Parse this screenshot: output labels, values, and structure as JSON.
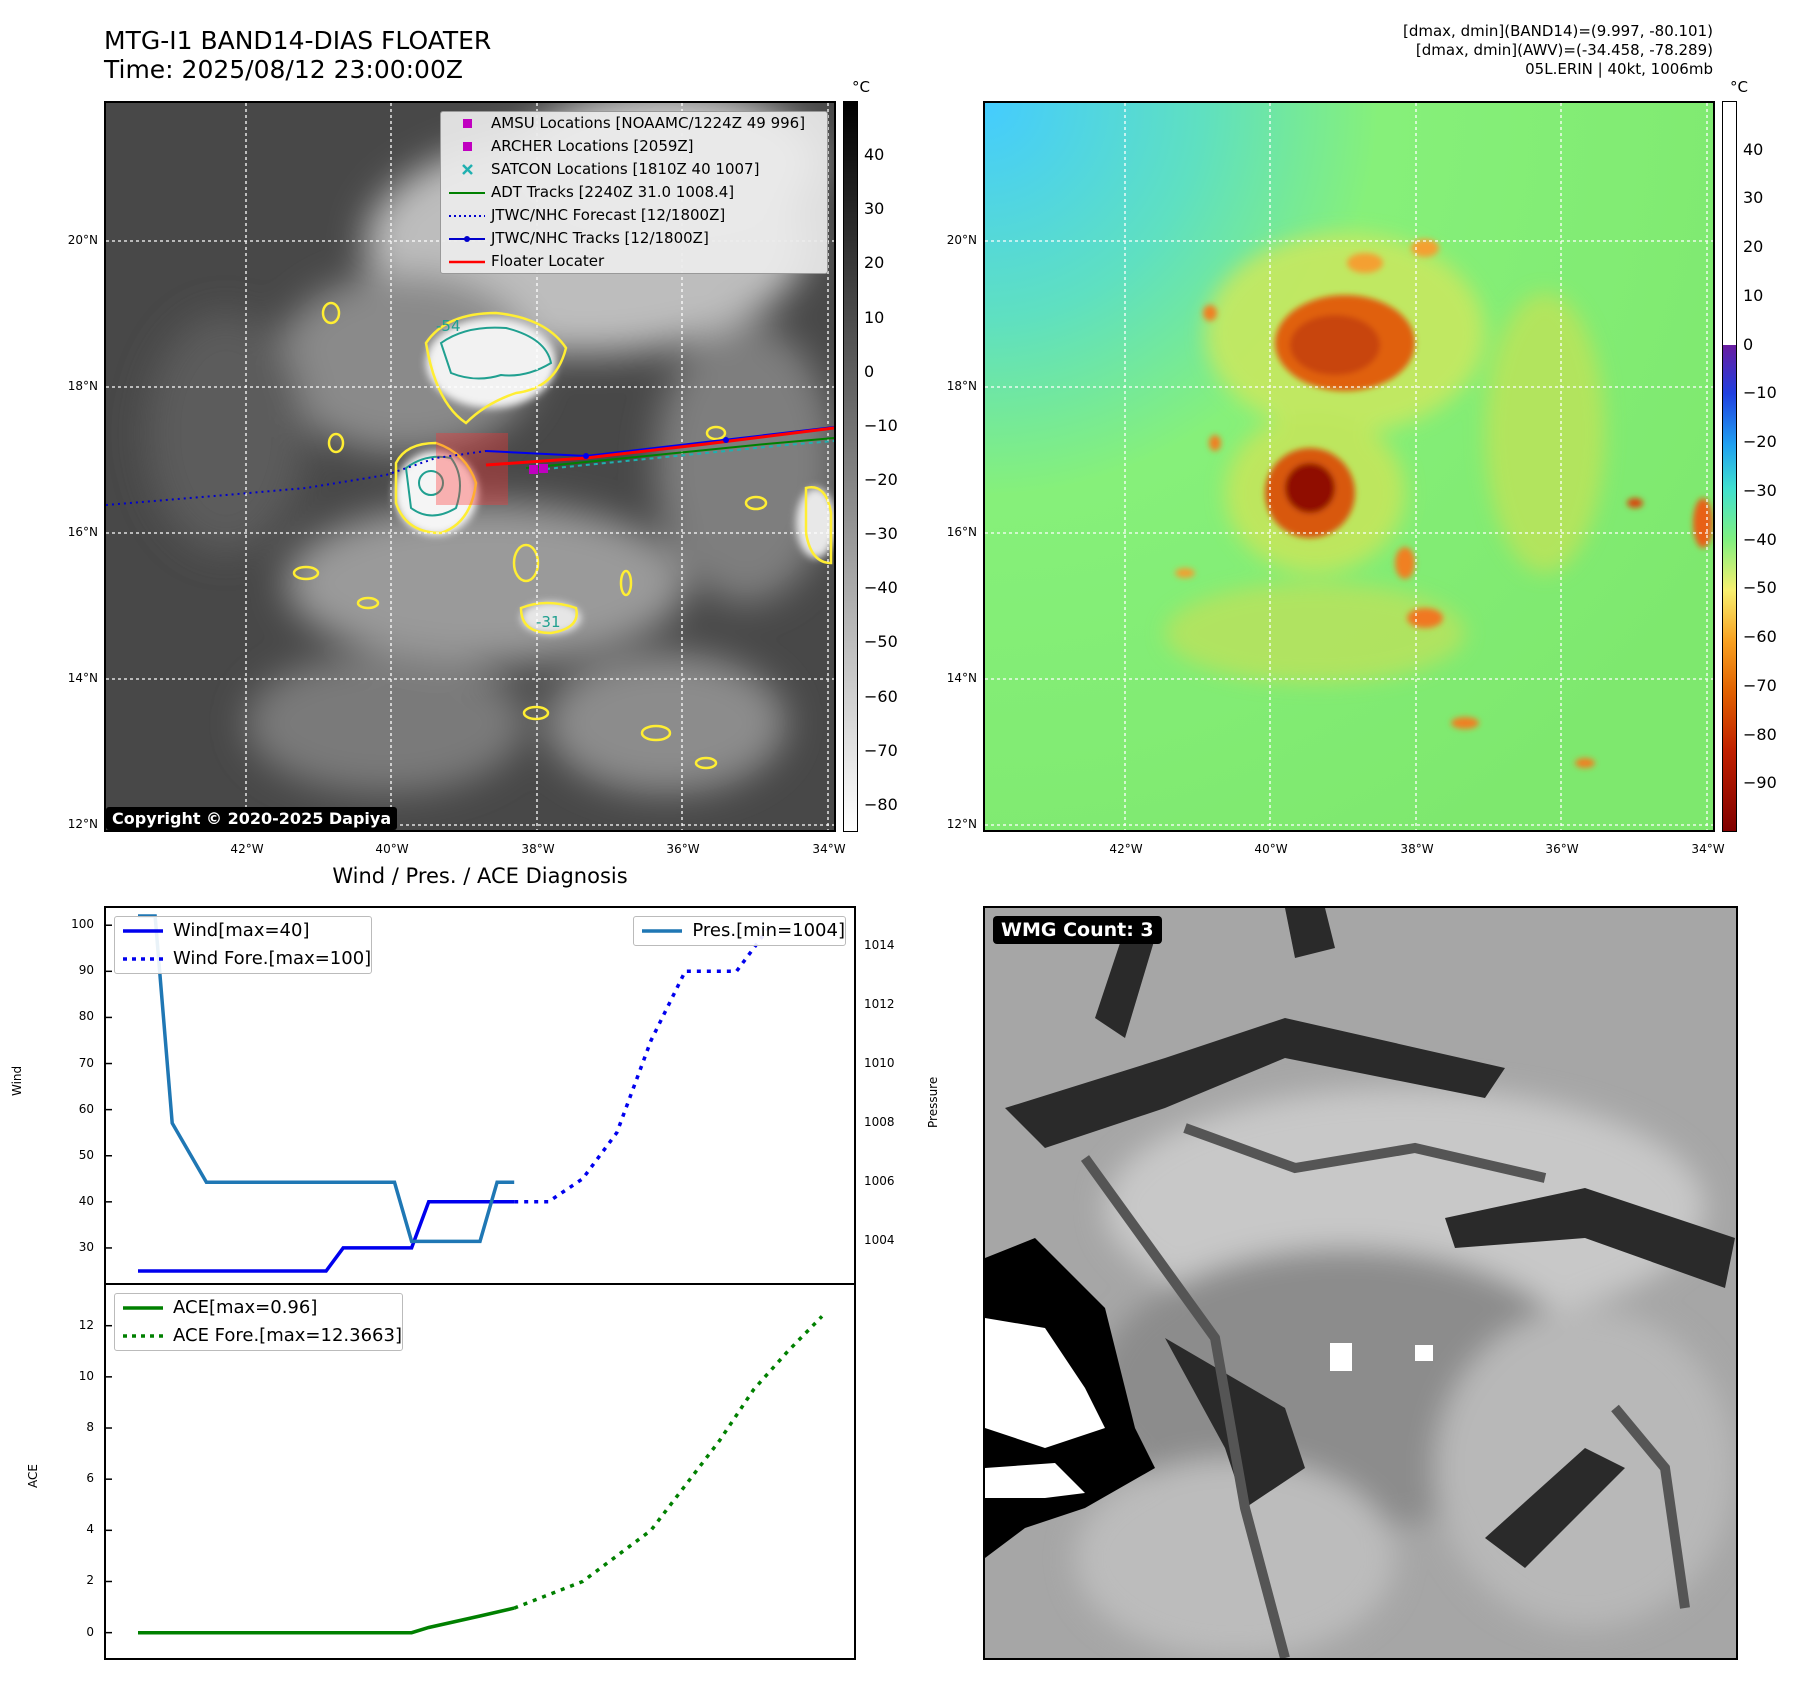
{
  "header": {
    "title_line1": "MTG-I1 BAND14-DIAS FLOATER",
    "title_line2": "Time: 2025/08/12 23:00:00Z",
    "info_line1": "[dmax, dmin](BAND14)=(9.997, -80.101)",
    "info_line2": "[dmax, dmin](AWV)=(-34.458, -78.289)",
    "info_line3": "05L.ERIN | 40kt, 1006mb"
  },
  "map_axes": {
    "lon_ticks": [
      "42°W",
      "40°W",
      "38°W",
      "36°W",
      "34°W"
    ],
    "lat_ticks": [
      "20°N",
      "18°N",
      "16°N",
      "14°N",
      "12°N"
    ]
  },
  "ir_panel": {
    "legend": [
      {
        "label": "AMSU Locations [NOAAMC/1224Z 49 996]",
        "color": "#c000c0",
        "icon": "square-marker"
      },
      {
        "label": "ARCHER Locations [2059Z]",
        "color": "#c000c0",
        "icon": "square-marker"
      },
      {
        "label": "SATCON Locations [1810Z 40 1007]",
        "color": "#20b0b0",
        "icon": "x-marker"
      },
      {
        "label": "ADT Tracks [2240Z 31.0 1008.4]",
        "color": "#008000",
        "icon": "solid-line"
      },
      {
        "label": "JTWC/NHC Forecast [12/1800Z]",
        "color": "#0000cc",
        "icon": "dotted-line"
      },
      {
        "label": "JTWC/NHC Tracks [12/1800Z]",
        "color": "#0000cc",
        "icon": "line-dot"
      },
      {
        "label": "Floater Locater",
        "color": "#ff0000",
        "icon": "solid-line"
      }
    ],
    "contour_labels": [
      "-54",
      "-31"
    ],
    "copyright": "Copyright © 2020-2025 Dapiya",
    "colorbar": {
      "unit": "°C",
      "ticks": [
        "40",
        "30",
        "20",
        "10",
        "0",
        "−10",
        "−20",
        "−30",
        "−40",
        "−50",
        "−60",
        "−70",
        "−80"
      ],
      "range": [
        -85,
        50
      ]
    }
  },
  "awv_panel": {
    "colorbar": {
      "unit": "°C",
      "ticks": [
        "40",
        "30",
        "20",
        "10",
        "0",
        "−10",
        "−20",
        "−30",
        "−40",
        "−50",
        "−60",
        "−70",
        "−80",
        "−90"
      ],
      "range": [
        -100,
        50
      ]
    }
  },
  "chart_data": [
    {
      "type": "line",
      "title": "Wind / Pres. / ACE Diagnosis",
      "ylabel": "Wind",
      "y2label": "Pressure",
      "ylim": [
        25,
        102
      ],
      "y2lim": [
        1003,
        1015
      ],
      "y_ticks": [
        "100",
        "90",
        "80",
        "70",
        "60",
        "50",
        "40",
        "30"
      ],
      "y2_ticks": [
        "1014",
        "1012",
        "1010",
        "1008",
        "1006",
        "1004"
      ],
      "x_index_range": [
        0,
        40
      ],
      "series": [
        {
          "name": "Wind[max=40]",
          "color": "#0000ee",
          "style": "solid",
          "x": [
            0,
            7,
            8,
            11,
            12,
            14,
            16,
            17,
            22
          ],
          "values": [
            25,
            25,
            25,
            25,
            30,
            30,
            30,
            40,
            40
          ]
        },
        {
          "name": "Wind Fore.[max=100]",
          "color": "#0000ee",
          "style": "dotted",
          "x": [
            22,
            24,
            26,
            28,
            30,
            32,
            34,
            35,
            36,
            37
          ],
          "values": [
            40,
            40,
            45,
            55,
            75,
            90,
            90,
            90,
            95,
            100
          ]
        },
        {
          "name": "Pres.[min=1004]",
          "color": "#1f77b4",
          "style": "solid",
          "axis": "right",
          "x": [
            0,
            1,
            2,
            4,
            5,
            12,
            15,
            16,
            17,
            20,
            21,
            22
          ],
          "values": [
            1015,
            1015,
            1008,
            1006,
            1006,
            1006,
            1006,
            1004,
            1004,
            1004,
            1006,
            1006
          ]
        }
      ]
    },
    {
      "type": "line",
      "ylabel": "ACE",
      "ylim": [
        -0.6,
        13.2
      ],
      "y_ticks": [
        "12",
        "10",
        "8",
        "6",
        "4",
        "2",
        "0"
      ],
      "x_index_range": [
        0,
        40
      ],
      "series": [
        {
          "name": "ACE[max=0.96]",
          "color": "#008000",
          "style": "solid",
          "x": [
            0,
            11,
            16,
            17,
            20,
            22
          ],
          "values": [
            0,
            0,
            0,
            0.2,
            0.65,
            0.96
          ]
        },
        {
          "name": "ACE Fore.[max=12.3663]",
          "color": "#008000",
          "style": "dotted",
          "x": [
            22,
            26,
            30,
            34,
            36,
            38,
            40
          ],
          "values": [
            0.96,
            2.0,
            4.0,
            7.5,
            9.5,
            11.0,
            12.3663
          ]
        }
      ]
    }
  ],
  "wmg_panel": {
    "label": "WMG Count: 3"
  }
}
